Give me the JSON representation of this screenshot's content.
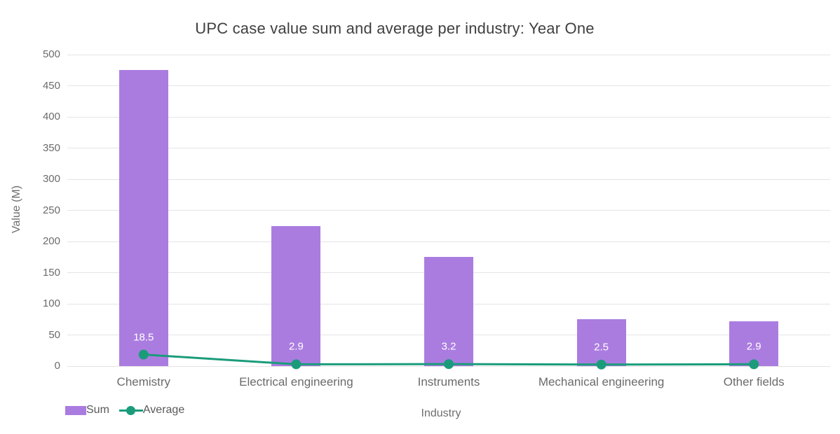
{
  "chart": {
    "title": "UPC case value sum and average per industry: Year One",
    "y_axis_title": "Value (M)",
    "x_axis_title": "Industry"
  },
  "chart_data": {
    "type": "bar",
    "subtype": "bar-with-line-overlay",
    "title": "UPC case value sum and average per industry: Year One",
    "xlabel": "Industry",
    "ylabel": "Value (M)",
    "categories": [
      "Chemistry",
      "Electrical engineering",
      "Instruments",
      "Mechanical engineering",
      "Other fields"
    ],
    "series": [
      {
        "name": "Sum",
        "type": "bar",
        "color": "#ab7ce0",
        "values": [
          475,
          225,
          175,
          75,
          72
        ]
      },
      {
        "name": "Average",
        "type": "line",
        "color": "#1a9c7b",
        "values": [
          18.5,
          2.9,
          3.2,
          2.5,
          2.9
        ],
        "point_labels": [
          "18.5",
          "2.9",
          "3.2",
          "2.5",
          "2.9"
        ],
        "point_label_color": "#ffffff"
      }
    ],
    "ylim": [
      0,
      500
    ],
    "ytick_step": 50,
    "ytick_labels": [
      "0",
      "50",
      "100",
      "150",
      "200",
      "250",
      "300",
      "350",
      "400",
      "450",
      "500"
    ],
    "grid": true,
    "legend_position": "bottom-left",
    "legend": [
      {
        "label": "Sum",
        "marker": "bar-swatch",
        "color": "#ab7ce0"
      },
      {
        "label": "Average",
        "marker": "line-with-dot",
        "color": "#1a9c7b"
      }
    ]
  }
}
